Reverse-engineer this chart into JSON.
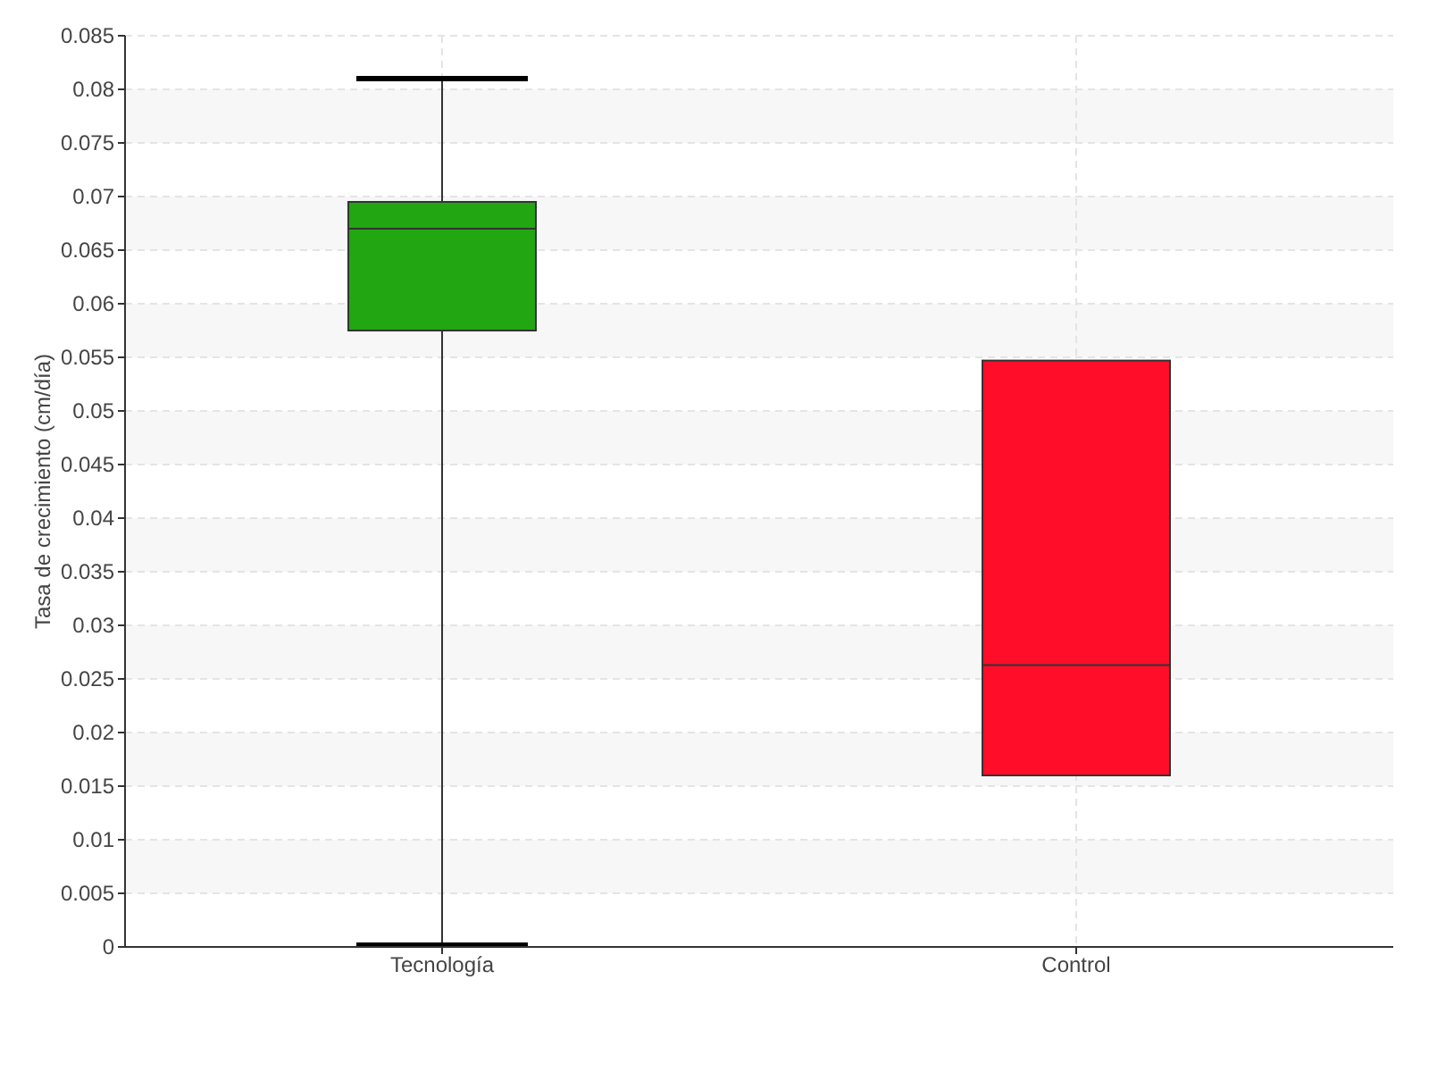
{
  "chart_data": {
    "type": "box",
    "ylabel": "Tasa de crecimiento (cm/día)",
    "categories": [
      "Tecnología",
      "Control"
    ],
    "colors": [
      "#22a612",
      "#ff0d29"
    ],
    "boxes": [
      {
        "low": 0,
        "q1": 0.0575,
        "median": 0.067,
        "q3": 0.0695,
        "high": 0.081
      },
      {
        "low": 0.016,
        "q1": 0.016,
        "median": 0.0263,
        "q3": 0.0547,
        "high": 0.0547
      }
    ],
    "ylim": [
      0,
      0.085
    ],
    "yticks": [
      0,
      0.005,
      0.01,
      0.015,
      0.02,
      0.025,
      0.03,
      0.035,
      0.04,
      0.045,
      0.05,
      0.055,
      0.06,
      0.065,
      0.07,
      0.075,
      0.08,
      0.085
    ],
    "grid": true
  }
}
